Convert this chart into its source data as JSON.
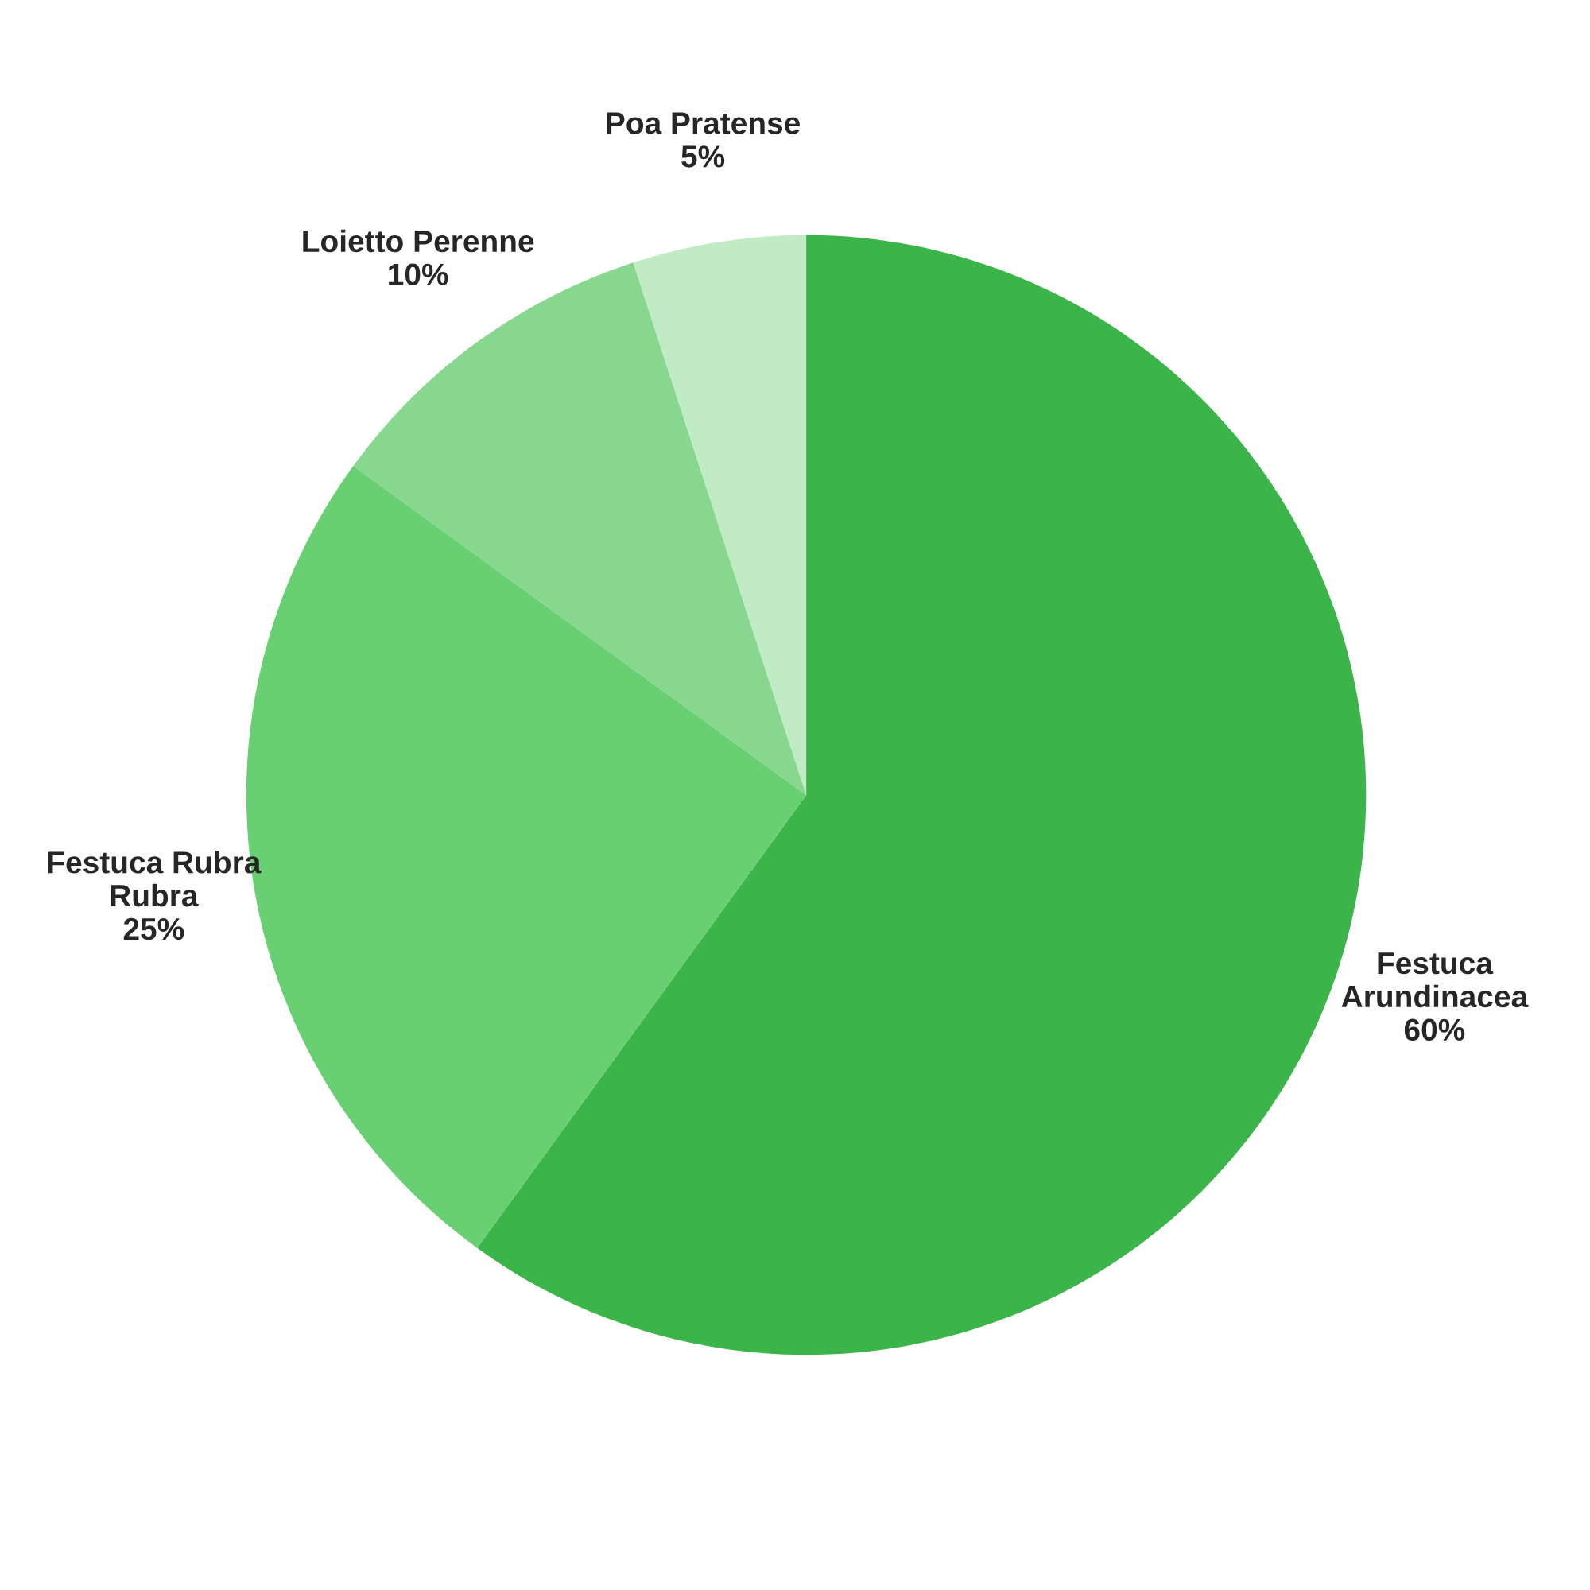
{
  "chart_data": {
    "type": "pie",
    "categories": [
      "Festuca\nArundinacea",
      "Festuca Rubra\nRubra",
      "Loietto Perenne",
      "Poa Pratense"
    ],
    "values": [
      60,
      25,
      10,
      5
    ],
    "colors": [
      "#3bb54a",
      "#68cf73",
      "#88d78e",
      "#c0ebc5"
    ],
    "value_labels": [
      "60%",
      "25%",
      "10%",
      "5%"
    ],
    "legend": false
  }
}
